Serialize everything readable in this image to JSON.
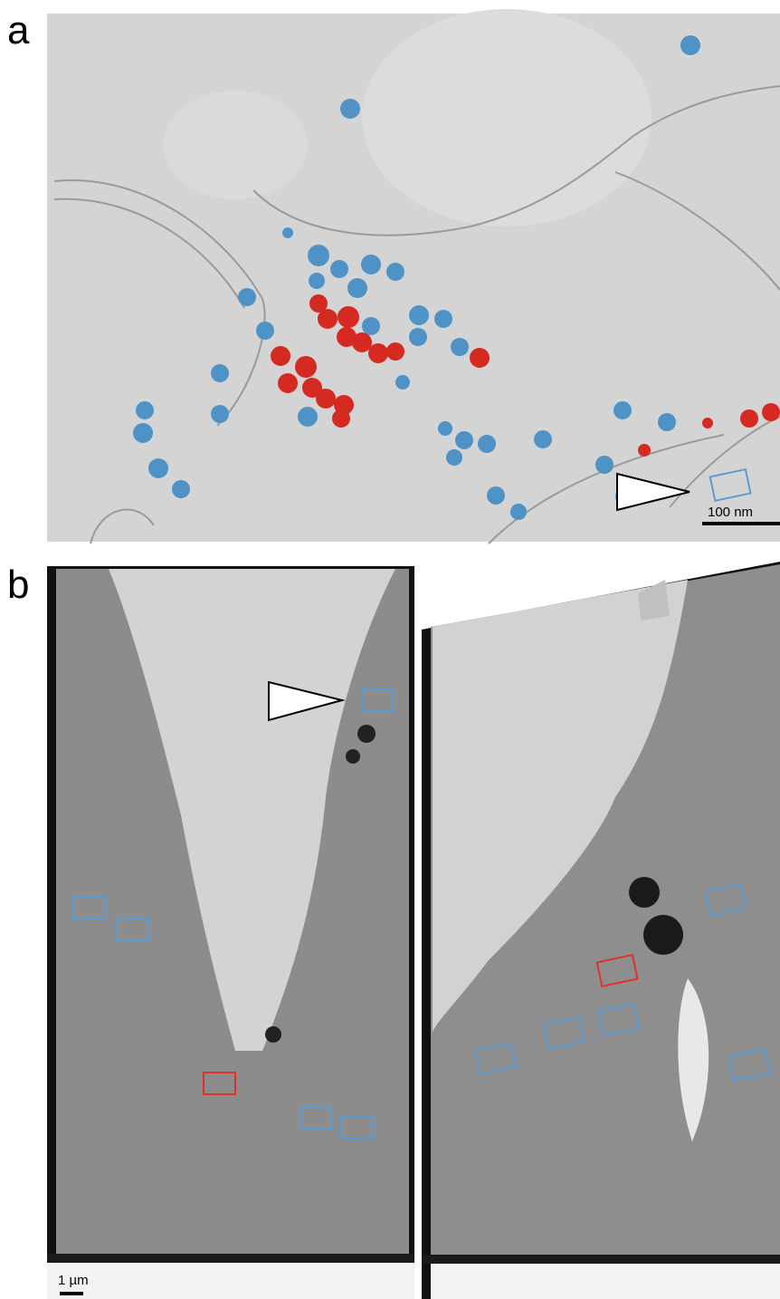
{
  "panel_a": {
    "label": "a",
    "scale_bar": "100 nm"
  },
  "panel_b": {
    "label": "b",
    "scale_bar": "1 µm"
  }
}
